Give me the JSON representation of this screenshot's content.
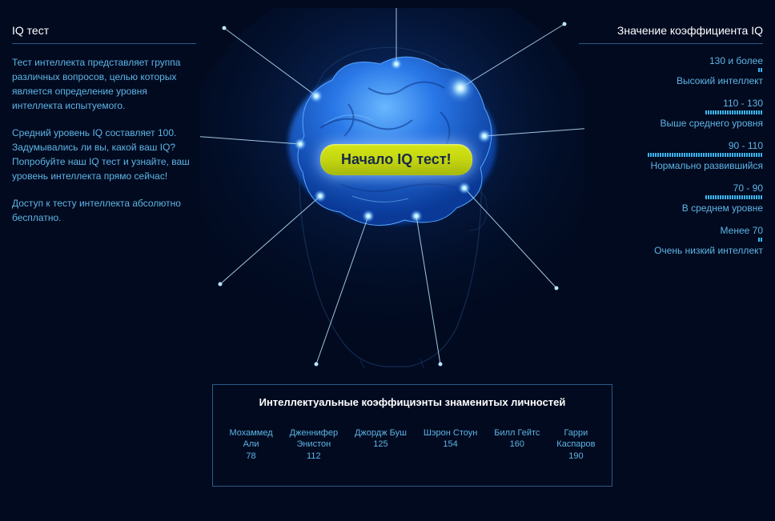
{
  "left": {
    "title": "IQ тест",
    "p1": "Тест интеллекта представляет группа различных вопросов, целью которых является определение уровня интеллекта испытуемого.",
    "p2": "Средний уровень IQ составляет 100. Задумывались ли вы, какой ваш IQ? Попробуйте наш IQ тест и узнайте, ваш уровень интеллекта прямо сейчас!",
    "p3": "Доступ к тесту интеллекта абсолютно бесплатно."
  },
  "right": {
    "title": "Значение коэффициента IQ",
    "ranges": [
      {
        "range": "130 и более",
        "label": "Высокий интеллект",
        "bar_segments": 2,
        "bar_color": "#3db5f0"
      },
      {
        "range": "110 - 130",
        "label": "Выше среднего уровня",
        "bar_segments": 24,
        "bar_color": "#3db5f0"
      },
      {
        "range": "90 - 110",
        "label": "Нормально развившийся",
        "bar_segments": 48,
        "bar_color": "#3db5f0"
      },
      {
        "range": "70 - 90",
        "label": "В среднем уровне",
        "bar_segments": 24,
        "bar_color": "#3db5f0"
      },
      {
        "range": "Менее 70",
        "label": "Очень низкий интеллект",
        "bar_segments": 2,
        "bar_color": "#3db5f0"
      }
    ]
  },
  "start_button": "Начало IQ тест!",
  "celeb": {
    "title": "Интеллектуальные коэффициэнты знаменитых личностей",
    "items": [
      {
        "name1": "Мохаммед",
        "name2": "Али",
        "iq": "78"
      },
      {
        "name1": "Дженнифер",
        "name2": "Энистон",
        "iq": "112"
      },
      {
        "name1": "Джордж Буш",
        "name2": "",
        "iq": "125"
      },
      {
        "name1": "Шэрон Стоун",
        "name2": "",
        "iq": "154"
      },
      {
        "name1": "Билл Гейтс",
        "name2": "",
        "iq": "160"
      },
      {
        "name1": "Гарри",
        "name2": "Каспаров",
        "iq": "190"
      }
    ]
  },
  "brain": {
    "main_color": "#1a6ee0",
    "highlight_color": "#4aa0ff",
    "glow_color": "#0a4fd8",
    "head_outline": "#1a3a68",
    "spark_color": "#9ad8ff",
    "line_color": "#bde5ff"
  },
  "colors": {
    "bg": "#010a1f",
    "text": "#5fb5e6",
    "heading": "#ffffff",
    "border": "#2a5a8a"
  }
}
